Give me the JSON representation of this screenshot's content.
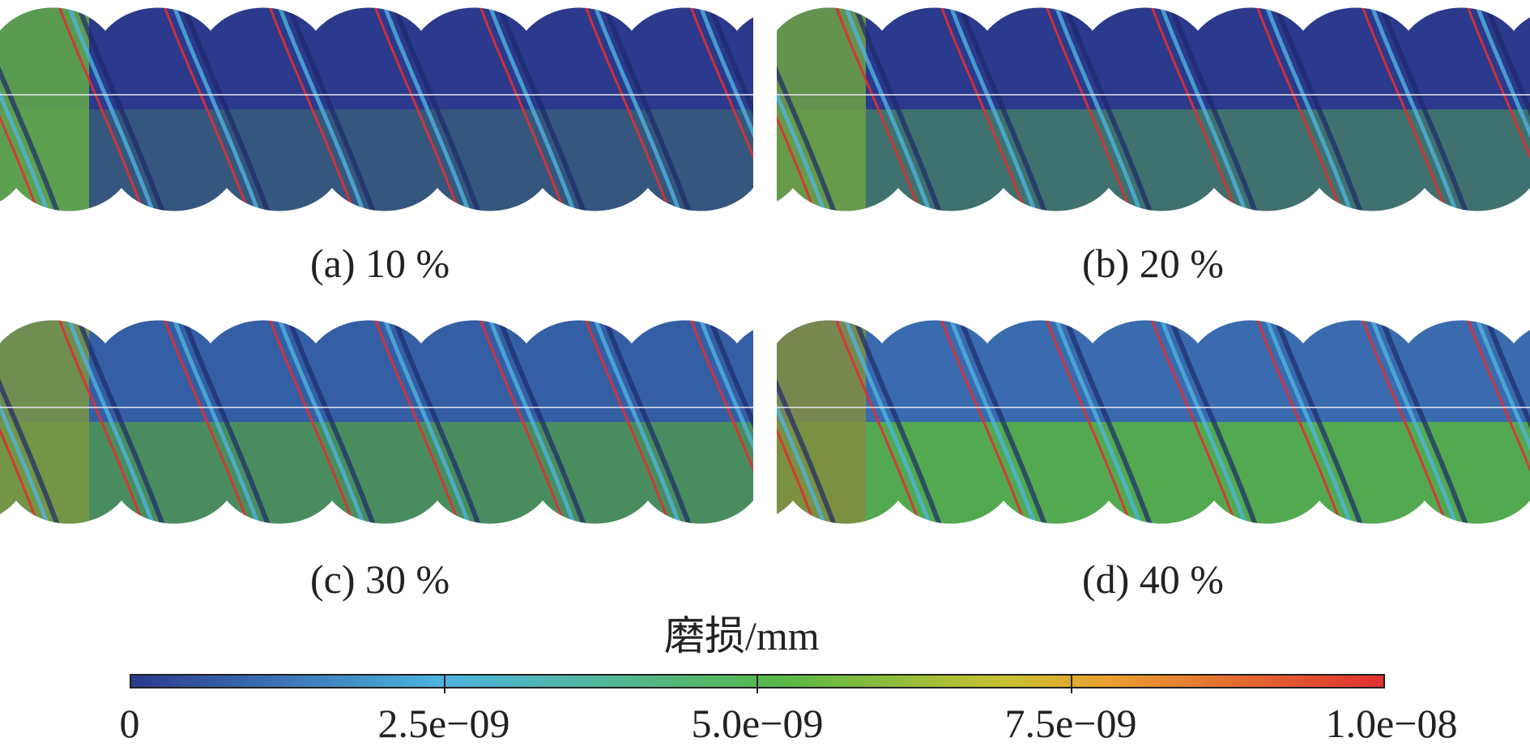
{
  "colors": {
    "low": "#2b3a8c",
    "low_mid": "#4db4e0",
    "mid": "#58b848",
    "high_mid": "#e8a030",
    "high": "#e03030"
  },
  "panels": [
    {
      "caption": "(a) 10 %",
      "wear_level": 0.1
    },
    {
      "caption": "(b) 20 %",
      "wear_level": 0.2
    },
    {
      "caption": "(c) 30 %",
      "wear_level": 0.3
    },
    {
      "caption": "(d) 40 %",
      "wear_level": 0.4
    }
  ],
  "colorbar": {
    "title": "磨损/mm",
    "ticks": [
      "0",
      "2.5e−09",
      "5.0e−09",
      "7.5e−09",
      "1.0e−08"
    ]
  }
}
